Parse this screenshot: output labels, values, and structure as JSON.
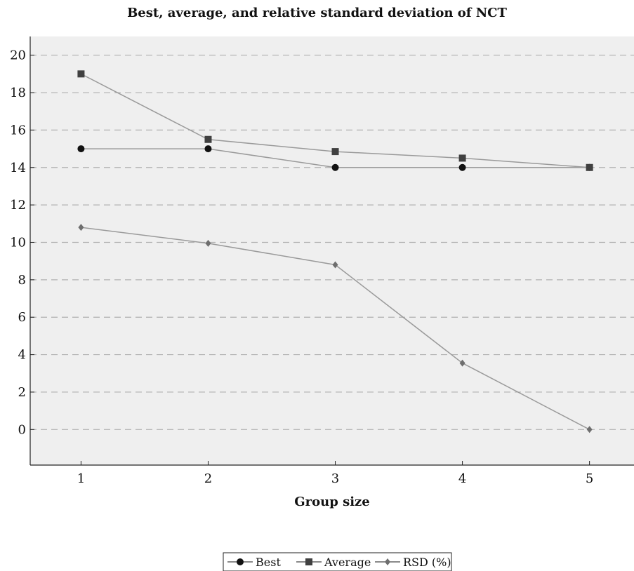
{
  "chart_data": {
    "type": "line",
    "title": "Best, average, and relative standard deviation of NCT",
    "xlabel": "Group size",
    "ylabel": "",
    "x": [
      1,
      2,
      3,
      4,
      5
    ],
    "xlim": [
      0.6,
      5.35
    ],
    "ylim": [
      -1.9,
      21
    ],
    "y_ticks": [
      0,
      2,
      4,
      6,
      8,
      10,
      12,
      14,
      16,
      18,
      20
    ],
    "grid": "horizontal dashed",
    "legend_position": "bottom-center",
    "series": [
      {
        "name": "Best",
        "marker": "circle",
        "color": "#111111",
        "values": [
          15,
          15,
          14,
          14,
          14
        ]
      },
      {
        "name": "Average",
        "marker": "square",
        "color": "#404040",
        "values": [
          19,
          15.5,
          14.85,
          14.5,
          14
        ]
      },
      {
        "name": "RSD (%)",
        "marker": "diamond",
        "color": "#6e6e6e",
        "values": [
          10.8,
          9.95,
          8.8,
          3.55,
          0
        ]
      }
    ]
  },
  "colors": {
    "plot_background": "#efefef",
    "line": "#9a9a9a",
    "grid": "#b0b0b0"
  }
}
